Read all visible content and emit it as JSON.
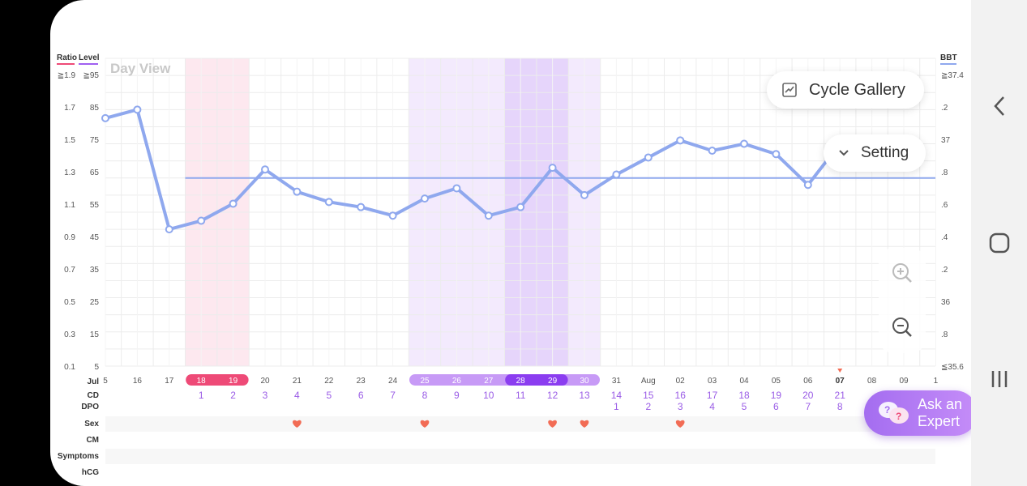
{
  "left_header": {
    "ratio": "Ratio",
    "level": "Level",
    "ratio_color": "#ee4a77",
    "level_color": "#a05ff0"
  },
  "right_header": {
    "bbt": "BBT",
    "bbt_color": "#8fa8ee"
  },
  "day_view_label": "Day View",
  "y_left_ratio": [
    "≧1.9",
    "1.7",
    "1.5",
    "1.3",
    "1.1",
    "0.9",
    "0.7",
    "0.5",
    "0.3",
    "0.1"
  ],
  "y_left_level": [
    "≧95",
    "85",
    "75",
    "65",
    "55",
    "45",
    "35",
    "25",
    "15",
    "5"
  ],
  "y_right_bbt": [
    "≧37.4",
    ".2",
    "37",
    ".8",
    ".6",
    ".4",
    ".2",
    "36",
    ".8",
    "≦35.6"
  ],
  "buttons": {
    "cycle_gallery": "Cycle Gallery",
    "setting": "Setting",
    "ask_expert_line1": "Ask an",
    "ask_expert_line2": "Expert"
  },
  "row_labels": {
    "month": "Jul",
    "cd": "CD",
    "dpo": "DPO",
    "sex": "Sex",
    "cm": "CM",
    "symptoms": "Symptoms",
    "hcg": "hCG"
  },
  "colors": {
    "line": "#8fa8ee",
    "period": "#ee4a77",
    "fertile": "#a05ff0",
    "ovulation": "#8b3df0",
    "heart": "#f26c55",
    "cd_text": "#9a5ce6"
  },
  "chart_data": {
    "type": "line",
    "x_dates": [
      "Jul 15",
      "Jul 16",
      "Jul 17",
      "Jul 18",
      "Jul 19",
      "Jul 20",
      "Jul 21",
      "Jul 22",
      "Jul 23",
      "Jul 24",
      "Jul 25",
      "Jul 26",
      "Jul 27",
      "Jul 28",
      "Jul 29",
      "Jul 30",
      "Jul 31",
      "Aug 01",
      "Aug 02",
      "Aug 03",
      "Aug 04",
      "Aug 05",
      "Aug 06",
      "Aug 07",
      "Aug 08",
      "Aug 09",
      "Aug 10"
    ],
    "x_tick_labels": [
      "5",
      "16",
      "17",
      "18",
      "19",
      "20",
      "21",
      "22",
      "23",
      "24",
      "25",
      "26",
      "27",
      "28",
      "29",
      "30",
      "31",
      "Aug",
      "02",
      "03",
      "04",
      "05",
      "06",
      "07",
      "08",
      "09",
      "1"
    ],
    "cycle_day": [
      "",
      "",
      "",
      "1",
      "2",
      "3",
      "4",
      "5",
      "6",
      "7",
      "8",
      "9",
      "10",
      "11",
      "12",
      "13",
      "14",
      "15",
      "16",
      "17",
      "18",
      "19",
      "20",
      "21",
      "",
      "",
      ""
    ],
    "dpo": [
      "",
      "",
      "",
      "",
      "",
      "",
      "",
      "",
      "",
      "",
      "",
      "",
      "",
      "",
      "",
      "",
      "1",
      "2",
      "3",
      "4",
      "5",
      "6",
      "7",
      "8",
      "",
      "",
      ""
    ],
    "period_days": [
      "Jul 18",
      "Jul 19"
    ],
    "fertile_days": [
      "Jul 25",
      "Jul 26",
      "Jul 27",
      "Jul 28",
      "Jul 29",
      "Jul 30"
    ],
    "ovulation_days": [
      "Jul 28",
      "Jul 29"
    ],
    "today": "Aug 07",
    "sex_days": [
      "Jul 21",
      "Jul 25",
      "Jul 29",
      "Jul 30",
      "Aug 02"
    ],
    "series": [
      {
        "name": "BBT",
        "unit": "°C",
        "y_range": [
          35.6,
          37.4
        ],
        "values": [
          37.05,
          37.1,
          36.4,
          36.45,
          36.55,
          36.75,
          36.62,
          36.56,
          36.53,
          36.48,
          36.58,
          36.64,
          36.48,
          36.53,
          36.76,
          36.6,
          36.72,
          36.82,
          36.92,
          36.86,
          36.9,
          36.84,
          36.66,
          36.9
        ],
        "coverline": 36.7
      }
    ],
    "ratio_range": [
      0.1,
      1.9
    ],
    "level_range": [
      5,
      95
    ],
    "grid": true
  }
}
